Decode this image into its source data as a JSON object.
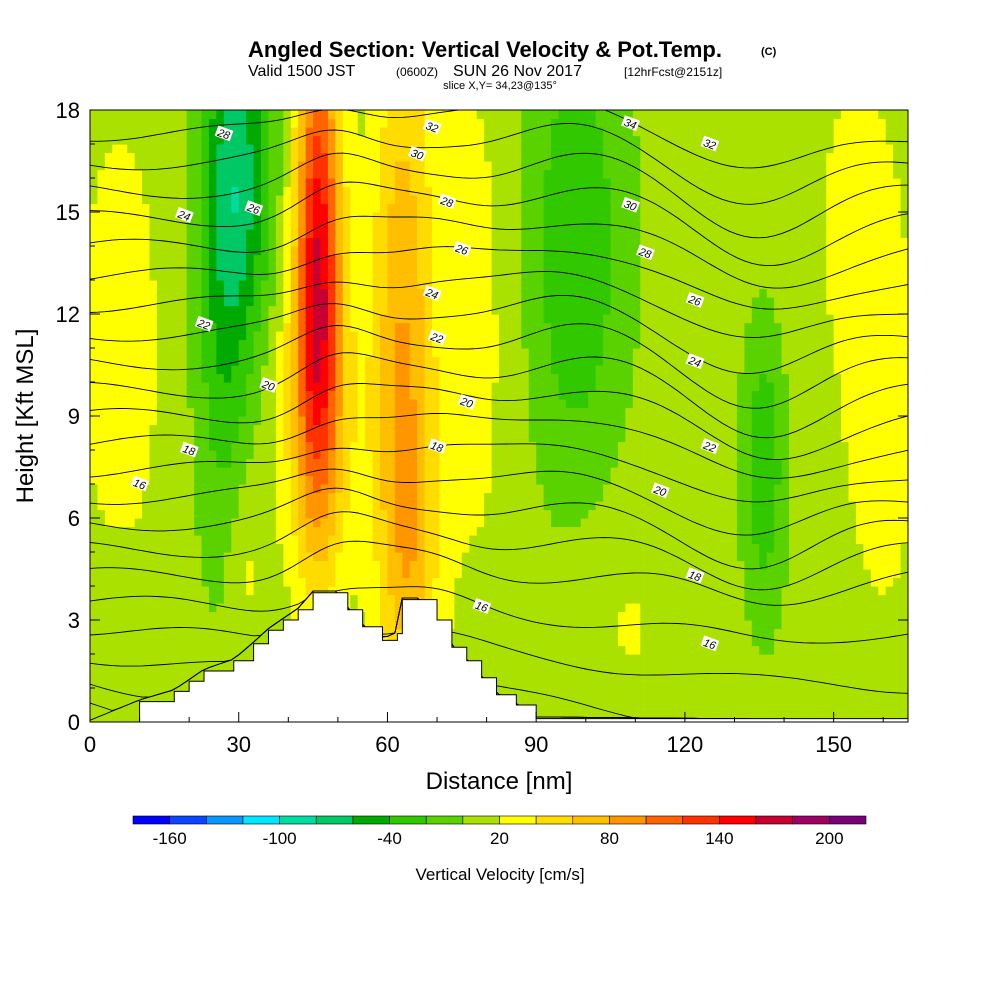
{
  "title": {
    "main": "Angled Section: Vertical Velocity & Pot.Temp.",
    "units_tag": "(C)",
    "valid_prefix": "Valid 1500 JST",
    "utc": "(0600Z)",
    "valid_date": "SUN 26 Nov 2017",
    "forecast": "[12hrFcst@2151z]",
    "slice": "slice X,Y= 34,23@135°"
  },
  "chart_data": {
    "type": "heatmap",
    "xlabel": "Distance [nm]",
    "ylabel": "Height [Kft MSL]",
    "xlim": [
      0,
      165
    ],
    "ylim": [
      0,
      18
    ],
    "x_ticks": [
      0,
      30,
      60,
      90,
      120,
      150
    ],
    "y_ticks": [
      0,
      3,
      6,
      9,
      12,
      15,
      18
    ],
    "field": "Vertical Velocity",
    "field_units": "cm/s",
    "colorbar": {
      "label": "Vertical Velocity [cm/s]",
      "min": -180,
      "max": 220,
      "step": 20,
      "tick_labels": [
        "-160",
        "-100",
        "-40",
        "20",
        "80",
        "140",
        "200"
      ],
      "tick_values": [
        -160,
        -100,
        -40,
        20,
        80,
        140,
        200
      ],
      "colors": [
        "#0000ff",
        "#0a46ff",
        "#0a96ff",
        "#00e6ff",
        "#00dca0",
        "#00c864",
        "#00aa00",
        "#32c800",
        "#5ad200",
        "#aae100",
        "#ffff00",
        "#ffdc00",
        "#ffbe00",
        "#ff9600",
        "#ff6400",
        "#ff3200",
        "#ff0000",
        "#c80032",
        "#a00064",
        "#780078"
      ]
    },
    "features": [
      {
        "name": "updraft core",
        "x": 46,
        "y_range": [
          7,
          18
        ],
        "max_value": 150
      },
      {
        "name": "updraft",
        "x": 63,
        "y_range": [
          2,
          18
        ],
        "max_value": 80
      },
      {
        "name": "downdraft",
        "x": 30,
        "y_range": [
          12,
          18
        ],
        "min_value": -60
      },
      {
        "name": "downdraft",
        "x": 98,
        "y_range": [
          8,
          18
        ],
        "min_value": -40
      },
      {
        "name": "downdraft",
        "x": 136,
        "y_range": [
          4,
          11
        ],
        "min_value": -40
      }
    ],
    "potential_temperature_contours": {
      "units": "C",
      "interval": 1,
      "labels": [
        {
          "value": 16,
          "x": 10,
          "y": 7.0
        },
        {
          "value": 18,
          "x": 20,
          "y": 8.0
        },
        {
          "value": 20,
          "x": 36,
          "y": 9.9
        },
        {
          "value": 22,
          "x": 23,
          "y": 11.7
        },
        {
          "value": 24,
          "x": 19,
          "y": 14.9
        },
        {
          "value": 26,
          "x": 33,
          "y": 15.1
        },
        {
          "value": 28,
          "x": 27,
          "y": 17.3
        },
        {
          "value": 32,
          "x": 69,
          "y": 17.5
        },
        {
          "value": 30,
          "x": 66,
          "y": 16.7
        },
        {
          "value": 28,
          "x": 72,
          "y": 15.3
        },
        {
          "value": 26,
          "x": 75,
          "y": 13.9
        },
        {
          "value": 24,
          "x": 69,
          "y": 12.6
        },
        {
          "value": 22,
          "x": 70,
          "y": 11.3
        },
        {
          "value": 20,
          "x": 76,
          "y": 9.4
        },
        {
          "value": 18,
          "x": 70,
          "y": 8.1
        },
        {
          "value": 16,
          "x": 79,
          "y": 3.4
        },
        {
          "value": 34,
          "x": 109,
          "y": 17.6
        },
        {
          "value": 32,
          "x": 125,
          "y": 17.0
        },
        {
          "value": 30,
          "x": 109,
          "y": 15.2
        },
        {
          "value": 28,
          "x": 112,
          "y": 13.8
        },
        {
          "value": 26,
          "x": 122,
          "y": 12.4
        },
        {
          "value": 24,
          "x": 122,
          "y": 10.6
        },
        {
          "value": 22,
          "x": 125,
          "y": 8.1
        },
        {
          "value": 20,
          "x": 115,
          "y": 6.8
        },
        {
          "value": 18,
          "x": 122,
          "y": 4.3
        },
        {
          "value": 16,
          "x": 125,
          "y": 2.3
        }
      ]
    },
    "terrain": {
      "x": [
        0,
        10,
        17,
        20,
        23,
        29,
        33,
        36,
        39,
        42,
        45,
        50,
        52,
        55,
        59,
        62,
        63,
        66,
        70,
        73,
        76,
        79,
        82,
        86,
        90,
        165
      ],
      "height": [
        0,
        0.6,
        0.9,
        1.2,
        1.5,
        1.8,
        2.3,
        2.7,
        3.0,
        3.3,
        3.8,
        3.8,
        3.3,
        2.8,
        2.4,
        2.6,
        3.6,
        3.6,
        3.0,
        2.2,
        1.8,
        1.3,
        0.8,
        0.5,
        0.1,
        0
      ]
    }
  }
}
